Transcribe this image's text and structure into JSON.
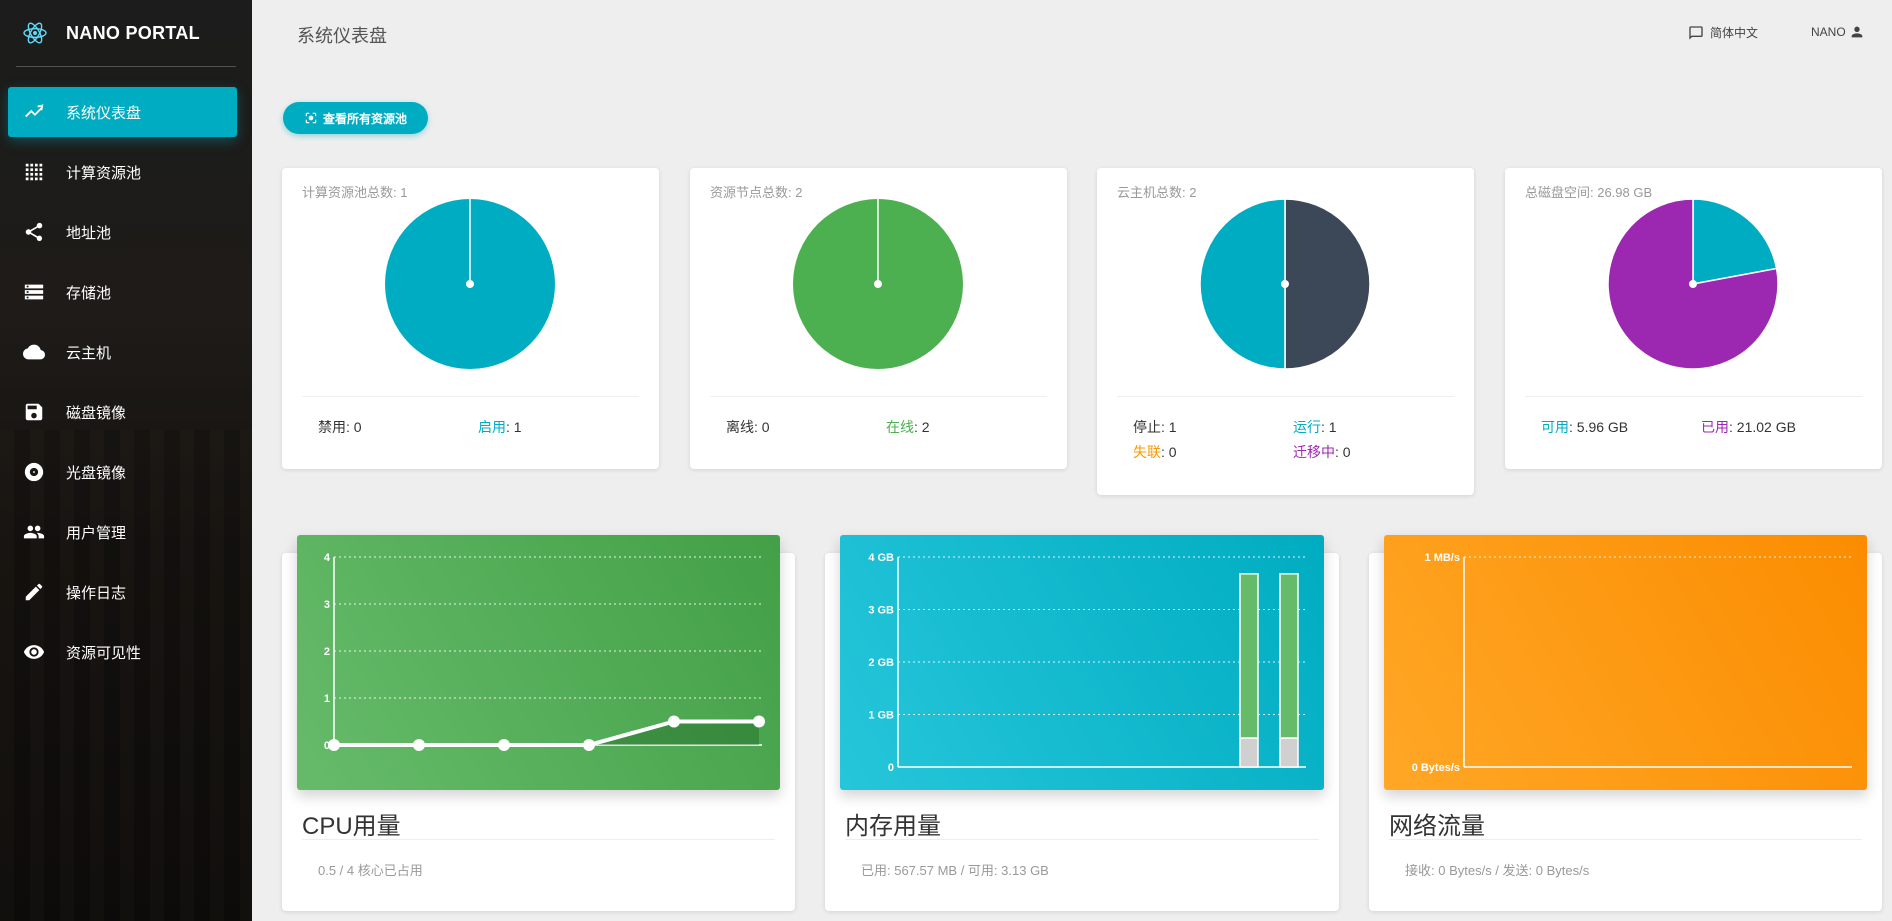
{
  "app": {
    "title": "NANO PORTAL"
  },
  "sidebar": {
    "items": [
      {
        "label": "系统仪表盘",
        "icon": "trending-icon",
        "active": true
      },
      {
        "label": "计算资源池",
        "icon": "grid-icon",
        "active": false
      },
      {
        "label": "地址池",
        "icon": "share-icon",
        "active": false
      },
      {
        "label": "存储池",
        "icon": "storage-icon",
        "active": false
      },
      {
        "label": "云主机",
        "icon": "cloud-icon",
        "active": false
      },
      {
        "label": "磁盘镜像",
        "icon": "save-icon",
        "active": false
      },
      {
        "label": "光盘镜像",
        "icon": "disc-icon",
        "active": false
      },
      {
        "label": "用户管理",
        "icon": "people-icon",
        "active": false
      },
      {
        "label": "操作日志",
        "icon": "pencil-icon",
        "active": false
      },
      {
        "label": "资源可见性",
        "icon": "eye-icon",
        "active": false
      }
    ]
  },
  "header": {
    "title": "系统仪表盘",
    "language": "简体中文",
    "user": "NANO"
  },
  "actions": {
    "view_all_pools": "查看所有资源池"
  },
  "stats": [
    {
      "label": "计算资源池总数: 1",
      "slices": [
        {
          "name": "禁用",
          "value": 0,
          "color": "#3c4858"
        },
        {
          "name": "启用",
          "value": 1,
          "color": "#00acc1"
        }
      ],
      "legend": [
        [
          {
            "k": "禁用",
            "v": ": 0",
            "color": "#333333"
          },
          {
            "k": "启用",
            "v": ": 1",
            "color": "#00acc1"
          }
        ]
      ]
    },
    {
      "label": "资源节点总数: 2",
      "slices": [
        {
          "name": "离线",
          "value": 0,
          "color": "#3c4858"
        },
        {
          "name": "在线",
          "value": 2,
          "color": "#4caf50"
        }
      ],
      "legend": [
        [
          {
            "k": "离线",
            "v": ": 0",
            "color": "#333333"
          },
          {
            "k": "在线",
            "v": ": 2",
            "color": "#4caf50"
          }
        ]
      ]
    },
    {
      "label": "云主机总数: 2",
      "slices": [
        {
          "name": "停止",
          "value": 1,
          "color": "#3c4858"
        },
        {
          "name": "运行",
          "value": 1,
          "color": "#00acc1"
        }
      ],
      "legend": [
        [
          {
            "k": "停止",
            "v": ": 1",
            "color": "#333333"
          },
          {
            "k": "运行",
            "v": ": 1",
            "color": "#00acc1"
          }
        ],
        [
          {
            "k": "失联",
            "v": ": 0",
            "color": "#ff9800"
          },
          {
            "k": "迁移中",
            "v": ": 0",
            "color": "#9c27b0"
          }
        ]
      ]
    },
    {
      "label": "总磁盘空间: 26.98 GB",
      "slices": [
        {
          "name": "可用",
          "value": 5.96,
          "color": "#00acc1"
        },
        {
          "name": "已用",
          "value": 21.02,
          "color": "#9c27b0"
        }
      ],
      "legend": [
        [
          {
            "k": "可用",
            "v": ": 5.96 GB",
            "color": "#00acc1"
          },
          {
            "k": "已用",
            "v": ": 21.02 GB",
            "color": "#9c27b0"
          }
        ]
      ]
    }
  ],
  "charts": {
    "cpu": {
      "title": "CPU用量",
      "footer": "0.5 / 4 核心已占用"
    },
    "memory": {
      "title": "内存用量",
      "footer": "已用: 567.57 MB / 可用: 3.13 GB"
    },
    "network": {
      "title": "网络流量",
      "footer": "接收: 0 Bytes/s / 发送: 0 Bytes/s"
    }
  },
  "chart_data": [
    {
      "type": "line",
      "y_ticks": [
        "0",
        "1",
        "2",
        "3",
        "4"
      ],
      "ylim": [
        0,
        4
      ],
      "values": [
        0,
        0,
        0,
        0,
        0.5,
        0.5
      ],
      "grid": true
    },
    {
      "type": "bar",
      "y_ticks": [
        "0",
        "1 GB",
        "2 GB",
        "3 GB",
        "4 GB"
      ],
      "ylim": [
        0,
        4
      ],
      "series": [
        {
          "name": "已用",
          "values": [
            0.55,
            0.55
          ]
        },
        {
          "name": "可用",
          "values": [
            3.13,
            3.13
          ]
        }
      ]
    },
    {
      "type": "line",
      "y_ticks": [
        "0 Bytes/s",
        "1 MB/s"
      ],
      "ylim": [
        0,
        1
      ],
      "values": []
    }
  ]
}
